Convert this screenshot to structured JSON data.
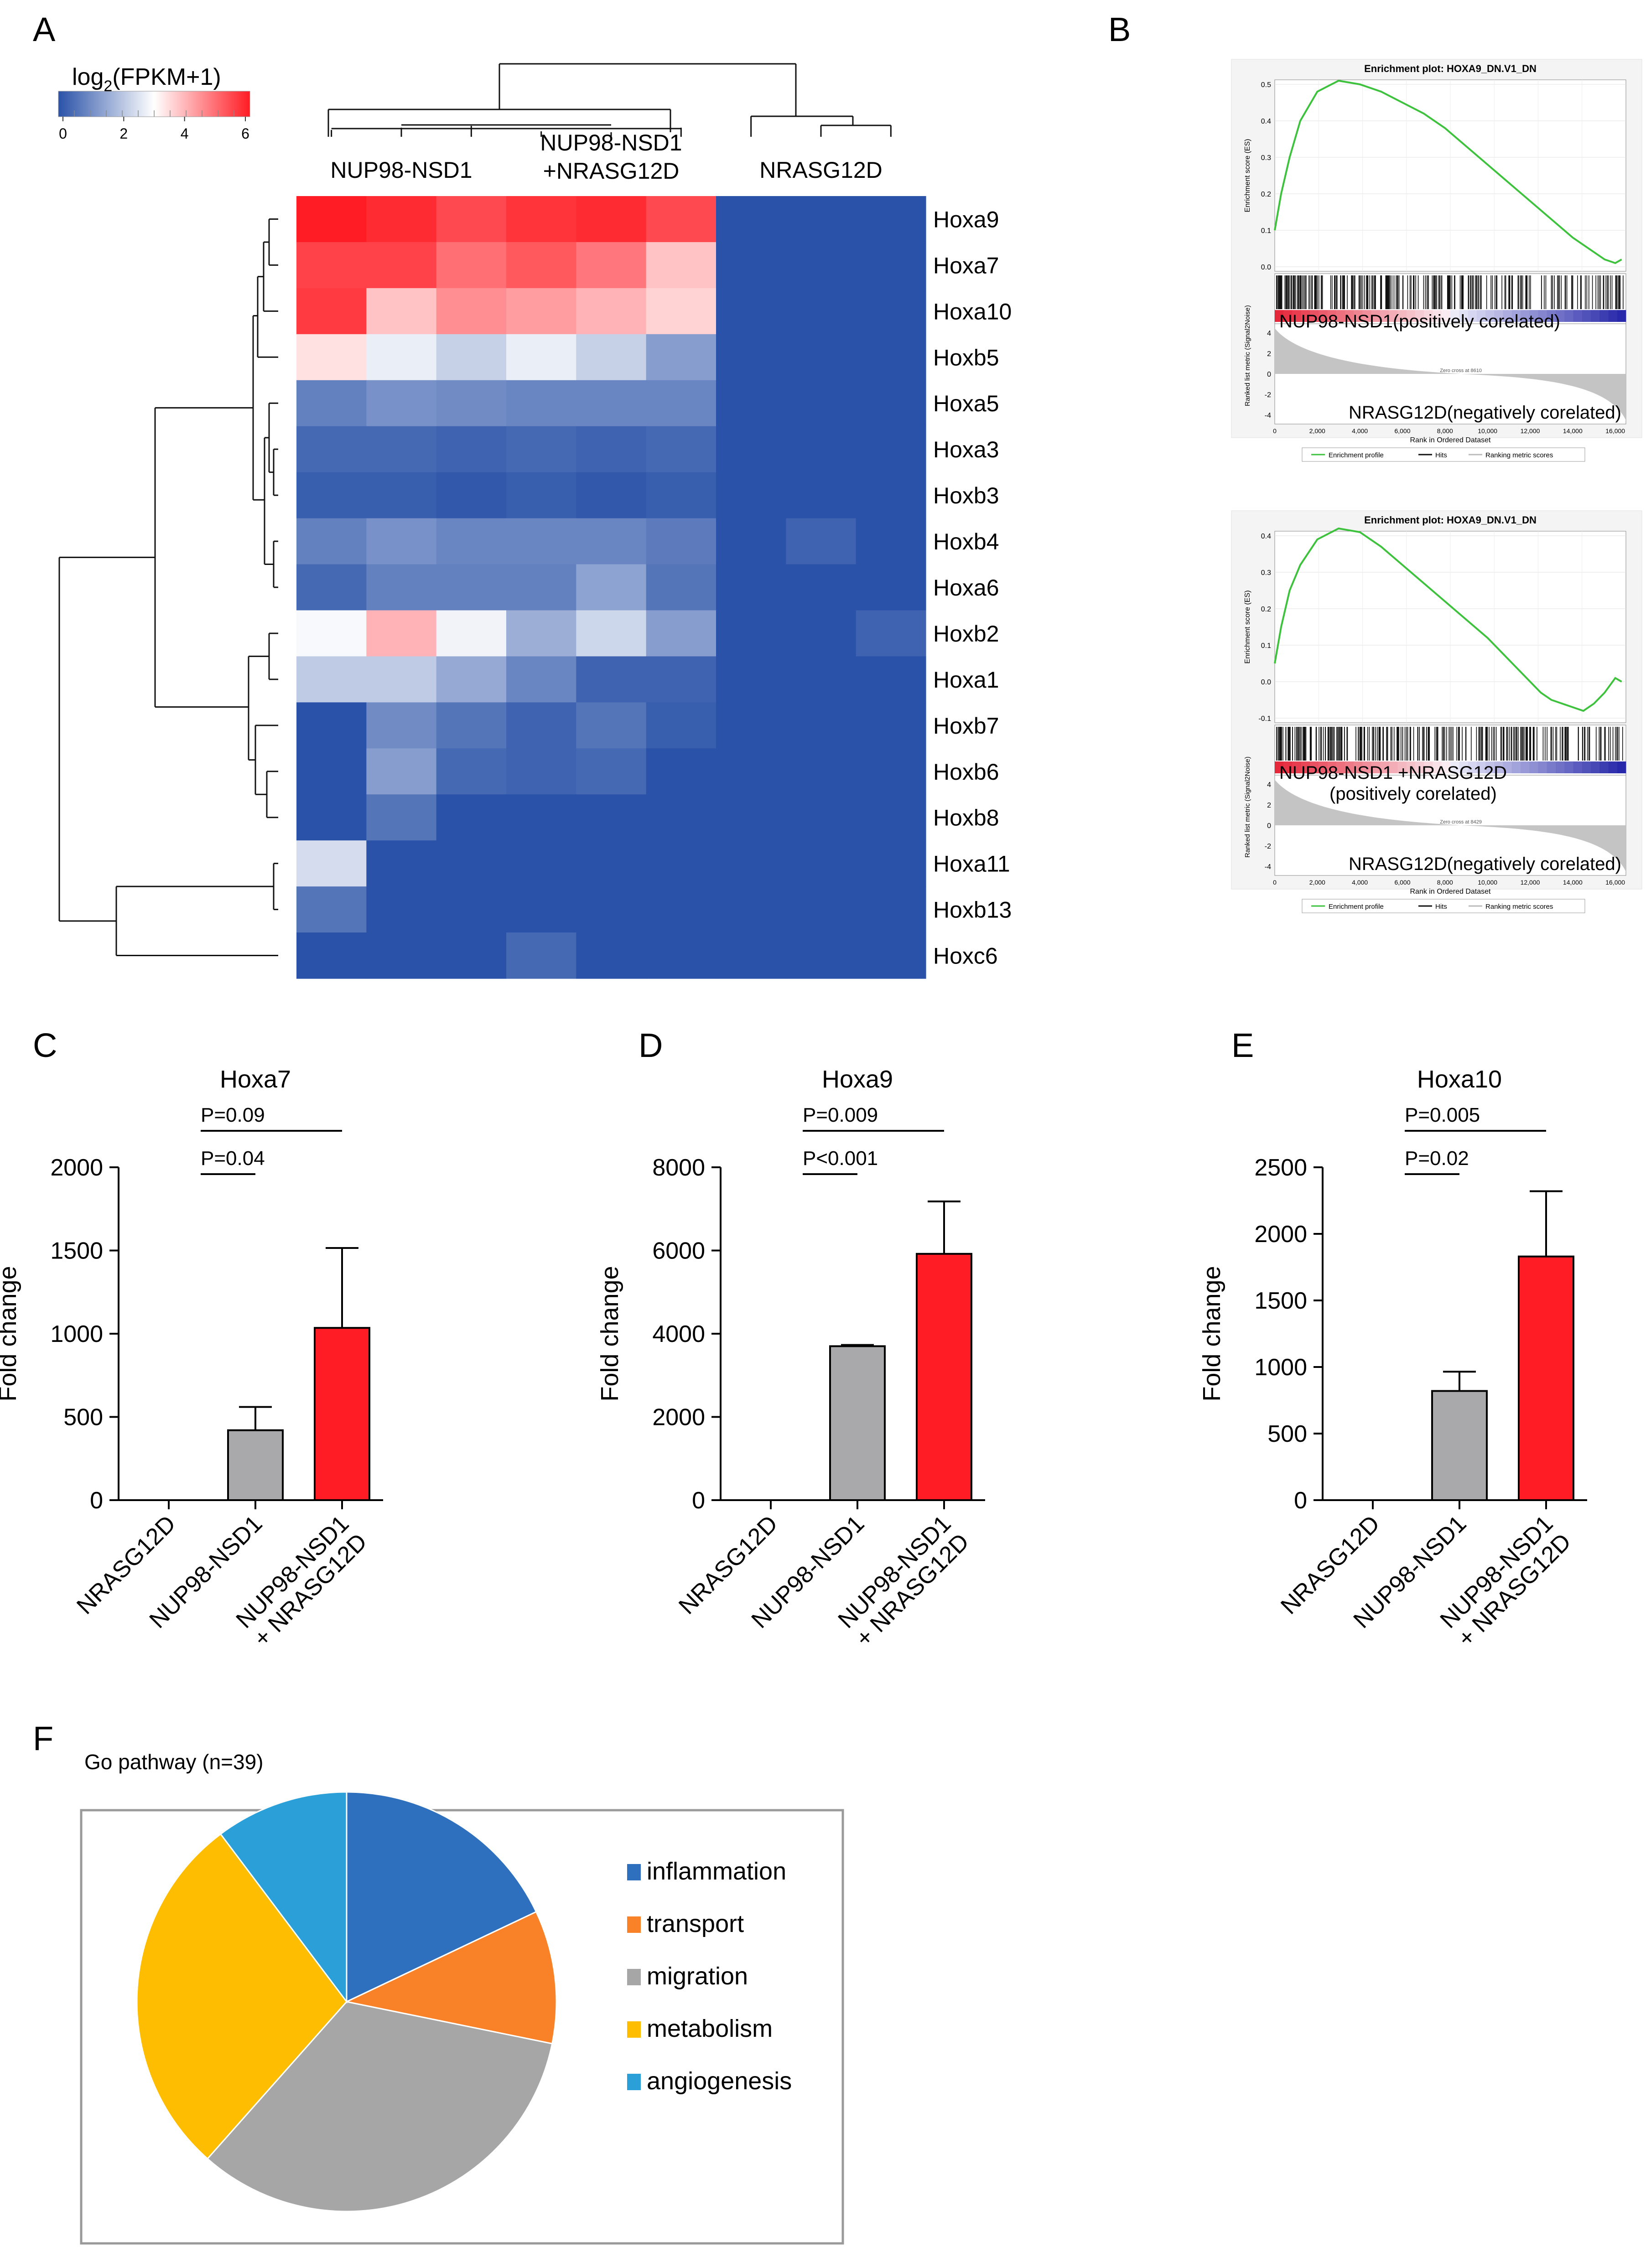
{
  "panels": {
    "A": "A",
    "B": "B",
    "C": "C",
    "D": "D",
    "E": "E",
    "F": "F"
  },
  "chart_data": [
    {
      "type": "heatmap",
      "panel": "A",
      "legend_title_prefix": "log",
      "legend_title_sub": "2",
      "legend_title_suffix": "(FPKM+1)",
      "color_scale": {
        "min": 0,
        "max": 6,
        "low": "#2a52a8",
        "mid": "#ffffff",
        "high": "#ff1c24"
      },
      "legend_ticks": [
        "0",
        "2",
        "4",
        "6"
      ],
      "column_groups": [
        {
          "label_lines": [
            "NUP98-NSD1"
          ],
          "n": 3
        },
        {
          "label_lines": [
            "NUP98-NSD1",
            "+NRASG12D"
          ],
          "n": 3
        },
        {
          "label_lines": [
            "NRASG12D"
          ],
          "n": 3
        }
      ],
      "rows": [
        "Hoxa9",
        "Hoxa7",
        "Hoxa10",
        "Hoxb5",
        "Hoxa5",
        "Hoxa3",
        "Hoxb3",
        "Hoxb4",
        "Hoxa6",
        "Hoxb2",
        "Hoxa1",
        "Hoxb7",
        "Hoxb6",
        "Hoxb8",
        "Hoxa11",
        "Hoxb13",
        "Hoxc6"
      ],
      "values": [
        [
          6.0,
          5.8,
          5.4,
          5.7,
          5.8,
          5.4,
          0,
          0,
          0
        ],
        [
          5.5,
          5.5,
          4.9,
          5.2,
          4.8,
          3.8,
          0,
          0,
          0
        ],
        [
          5.6,
          3.8,
          4.5,
          4.3,
          4.0,
          3.6,
          0,
          0,
          0
        ],
        [
          3.4,
          2.7,
          2.2,
          2.7,
          2.2,
          1.3,
          0,
          0,
          0
        ],
        [
          0.8,
          1.1,
          1.0,
          0.9,
          0.9,
          0.9,
          0,
          0,
          0
        ],
        [
          0.4,
          0.4,
          0.3,
          0.4,
          0.3,
          0.4,
          0,
          0,
          0
        ],
        [
          0.2,
          0.2,
          0.1,
          0.2,
          0.1,
          0.2,
          0,
          0,
          0
        ],
        [
          0.8,
          1.1,
          0.9,
          0.9,
          0.9,
          0.7,
          0,
          0.3,
          0
        ],
        [
          0.4,
          0.8,
          0.8,
          0.8,
          1.4,
          0.6,
          0,
          0,
          0
        ],
        [
          2.9,
          4.0,
          2.8,
          1.6,
          2.3,
          1.3,
          0,
          0,
          0.3
        ],
        [
          2.1,
          2.1,
          1.5,
          0.9,
          0.3,
          0.3,
          0,
          0,
          0
        ],
        [
          0,
          1.0,
          0.6,
          0.3,
          0.6,
          0.2,
          0,
          0,
          0
        ],
        [
          0,
          1.3,
          0.4,
          0.3,
          0.4,
          0,
          0,
          0,
          0
        ],
        [
          0,
          0.6,
          0,
          0,
          0,
          0,
          0,
          0,
          0
        ],
        [
          2.4,
          0,
          0,
          0,
          0,
          0,
          0,
          0,
          0
        ],
        [
          0.6,
          0,
          0,
          0,
          0,
          0,
          0,
          0,
          0
        ],
        [
          0,
          0,
          0,
          0.4,
          0,
          0,
          0,
          0,
          0
        ]
      ]
    },
    {
      "type": "line",
      "panel": "B",
      "title": "Enrichment plot: HOXA9_DN.V1_DN",
      "ylabel": "Enrichment score (ES)",
      "ylabel2": "Ranked list metric (Signal2Noise)",
      "xlabel": "Rank in Ordered Dataset",
      "ylim": [
        0,
        0.5
      ],
      "yticks": [
        "0.0",
        "0.1",
        "0.2",
        "0.3",
        "0.4",
        "0.5"
      ],
      "metric_ticks": [
        "4",
        "2",
        "0",
        "-2",
        "-4"
      ],
      "xticks": [
        "0",
        "2,000",
        "4,000",
        "6,000",
        "8,000",
        "10,000",
        "12,000",
        "14,000",
        "16,000"
      ],
      "x": [
        0,
        300,
        700,
        1200,
        2000,
        3000,
        4000,
        5000,
        6000,
        7000,
        8000,
        9000,
        10000,
        11000,
        12000,
        13000,
        14000,
        15000,
        15500,
        16000,
        16300
      ],
      "es": [
        0.1,
        0.2,
        0.3,
        0.4,
        0.48,
        0.51,
        0.5,
        0.48,
        0.45,
        0.42,
        0.38,
        0.33,
        0.28,
        0.23,
        0.18,
        0.13,
        0.08,
        0.04,
        0.02,
        0.01,
        0.02
      ],
      "positive_label": "NUP98-NSD1(positively  corelated)",
      "negative_label": "NRASG12D(negatively corelated)",
      "zero_cross": "Zero cross at 8610",
      "legend": [
        "Enrichment profile",
        "Hits",
        "Ranking metric scores"
      ]
    },
    {
      "type": "line",
      "panel": "B",
      "title": "Enrichment plot: HOXA9_DN.V1_DN",
      "ylabel": "Enrichment score (ES)",
      "ylabel2": "Ranked list metric (Signal2Noise)",
      "xlabel": "Rank in Ordered Dataset",
      "ylim": [
        -0.1,
        0.4
      ],
      "yticks": [
        "-0.1",
        "0.0",
        "0.1",
        "0.2",
        "0.3",
        "0.4"
      ],
      "metric_ticks": [
        "4",
        "2",
        "0",
        "-2",
        "-4"
      ],
      "xticks": [
        "0",
        "2,000",
        "4,000",
        "6,000",
        "8,000",
        "10,000",
        "12,000",
        "14,000",
        "16,000"
      ],
      "x": [
        0,
        300,
        700,
        1200,
        2000,
        3000,
        4000,
        5000,
        6000,
        7000,
        8000,
        9000,
        10000,
        11000,
        12000,
        12500,
        13000,
        13500,
        14000,
        14500,
        15000,
        15500,
        16000,
        16300
      ],
      "es": [
        0.05,
        0.15,
        0.25,
        0.32,
        0.39,
        0.42,
        0.41,
        0.37,
        0.32,
        0.27,
        0.22,
        0.17,
        0.12,
        0.06,
        0.0,
        -0.03,
        -0.05,
        -0.06,
        -0.07,
        -0.08,
        -0.06,
        -0.03,
        0.01,
        0.0
      ],
      "positive_label_lines": [
        "NUP98-NSD1 +NRASG12D",
        "(positively corelated)"
      ],
      "negative_label": "NRASG12D(negatively corelated)",
      "zero_cross": "Zero cross at 8429",
      "legend": [
        "Enrichment profile",
        "Hits",
        "Ranking metric scores"
      ]
    },
    {
      "type": "bar",
      "panel": "C",
      "title": "Hoxa7",
      "ylabel": "Fold change",
      "categories": [
        "NRASG12D",
        "NUP98-NSD1",
        "NUP98-NSD1 + NRASG12D"
      ],
      "values": [
        0,
        420,
        1035
      ],
      "errors": [
        0,
        140,
        480
      ],
      "colors": [
        "#a9a9ab",
        "#a9a9ab",
        "#ff1c24"
      ],
      "ylim": [
        0,
        2000
      ],
      "yticks": [
        "0",
        "500",
        "1000",
        "1500",
        "2000"
      ],
      "pvalues": [
        {
          "label": "P=0.09",
          "from": 1,
          "to": 2,
          "level": 2
        },
        {
          "label": "P=0.04",
          "from": 1,
          "to": 1,
          "level": 1
        }
      ]
    },
    {
      "type": "bar",
      "panel": "D",
      "title": "Hoxa9",
      "ylabel": "Fold change",
      "categories": [
        "NRASG12D",
        "NUP98-NSD1",
        "NUP98-NSD1 + NRASG12D"
      ],
      "values": [
        0,
        3700,
        5920
      ],
      "errors": [
        0,
        30,
        1260
      ],
      "colors": [
        "#a9a9ab",
        "#a9a9ab",
        "#ff1c24"
      ],
      "ylim": [
        0,
        8000
      ],
      "yticks": [
        "0",
        "2000",
        "4000",
        "6000",
        "8000"
      ],
      "pvalues": [
        {
          "label": "P=0.009",
          "from": 1,
          "to": 2,
          "level": 2
        },
        {
          "label": "P<0.001",
          "from": 1,
          "to": 1,
          "level": 1
        }
      ]
    },
    {
      "type": "bar",
      "panel": "E",
      "title": "Hoxa10",
      "ylabel": "Fold change",
      "categories": [
        "NRASG12D",
        "NUP98-NSD1",
        "NUP98-NSD1 + NRASG12D"
      ],
      "values": [
        0,
        820,
        1830
      ],
      "errors": [
        0,
        145,
        490
      ],
      "colors": [
        "#a9a9ab",
        "#a9a9ab",
        "#ff1c24"
      ],
      "ylim": [
        0,
        2500
      ],
      "yticks": [
        "0",
        "500",
        "1000",
        "1500",
        "2000",
        "2500"
      ],
      "pvalues": [
        {
          "label": "P=0.005",
          "from": 1,
          "to": 2,
          "level": 2
        },
        {
          "label": "P=0.02",
          "from": 1,
          "to": 1,
          "level": 1
        }
      ]
    },
    {
      "type": "pie",
      "panel": "F",
      "title": "Go pathway (n=39)",
      "labels": [
        "inflammation",
        "transport",
        "migration",
        "metabolism",
        "angiogenesis"
      ],
      "values": [
        7,
        4,
        13,
        11,
        4
      ],
      "colors": [
        "#2e70be",
        "#f98128",
        "#a6a6a6",
        "#ffbd00",
        "#2ba0d8"
      ]
    }
  ]
}
